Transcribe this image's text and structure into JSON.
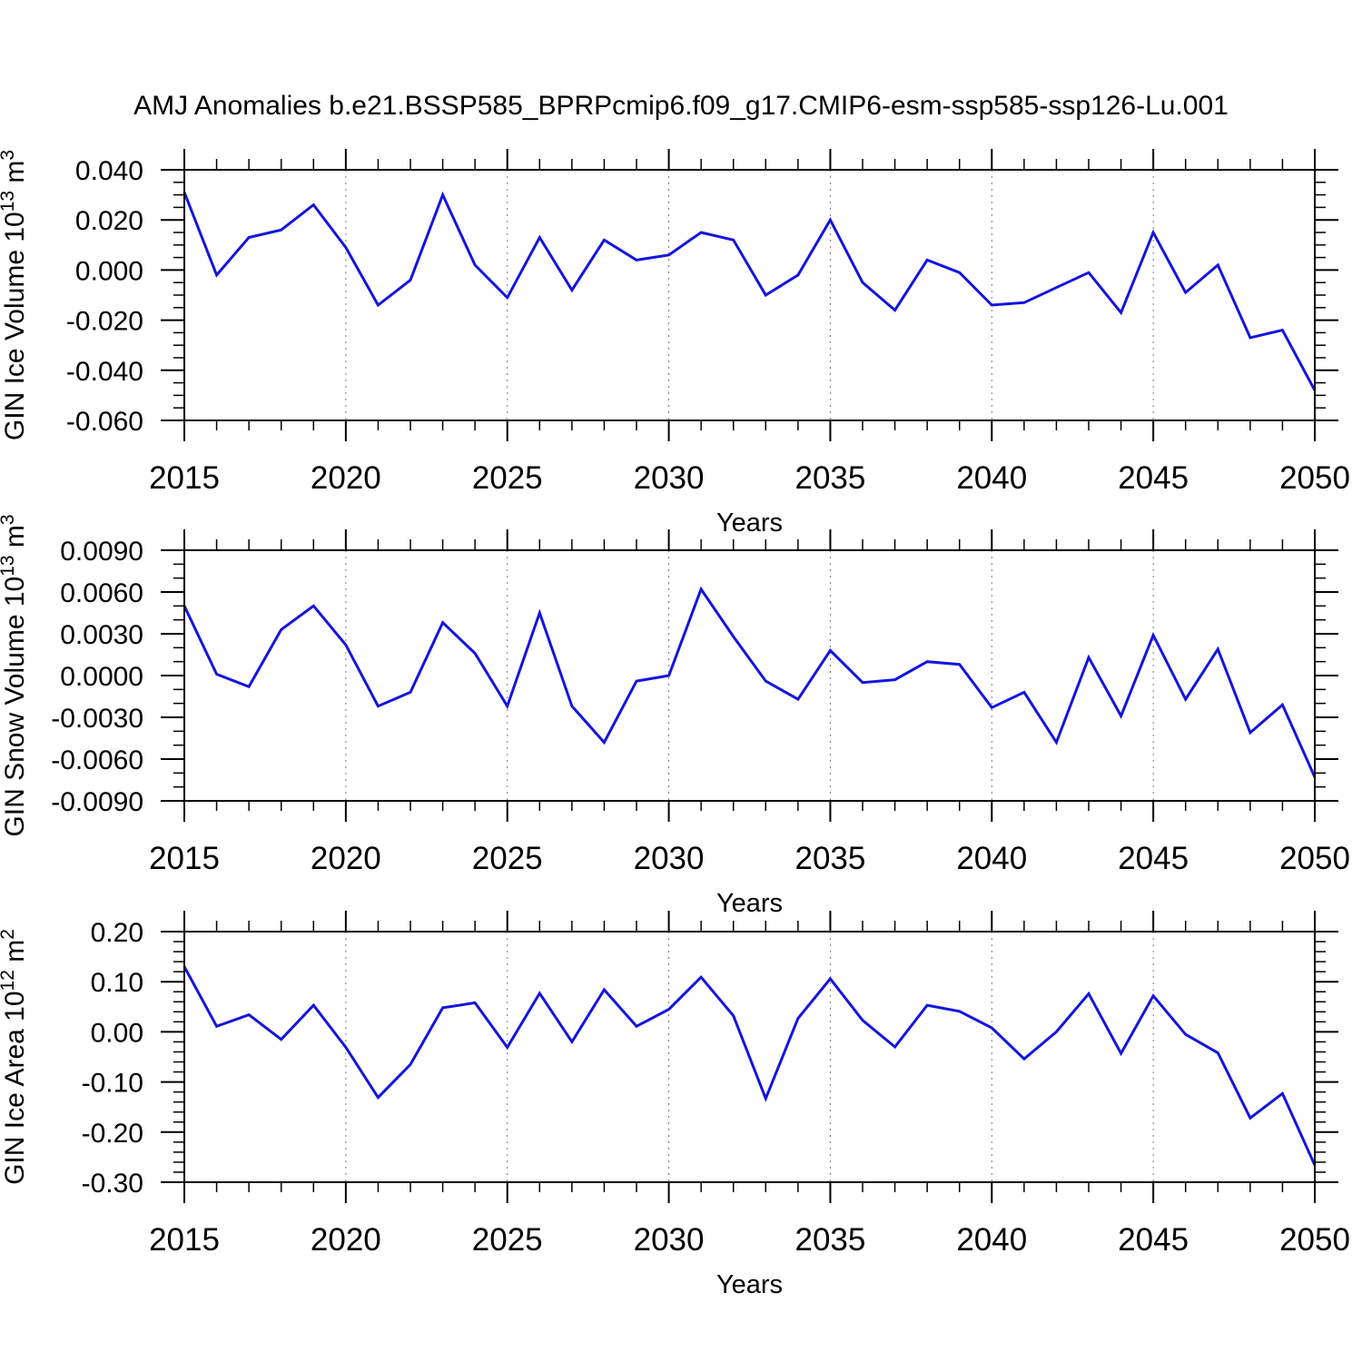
{
  "page": {
    "title": "AMJ Anomalies b.e21.BSSP585_BPRPcmip6.f09_g17.CMIP6-esm-ssp585-ssp126-Lu.001",
    "background": "#ffffff"
  },
  "style": {
    "line_color": "#1414e0",
    "axis_color": "#000000",
    "grid_color": "#7a7a7a",
    "text_color": "#000000"
  },
  "chart_data": [
    {
      "type": "line",
      "name": "GIN Ice Volume",
      "ylabel": "GIN Ice Volume 10¹³ m³",
      "ylabel_parts": [
        {
          "text": "GIN Ice Volume 10",
          "sup": false
        },
        {
          "text": "13",
          "sup": true
        },
        {
          "text": " m",
          "sup": false
        },
        {
          "text": "3",
          "sup": true
        }
      ],
      "xlabel": "Years",
      "x": [
        2015,
        2016,
        2017,
        2018,
        2019,
        2020,
        2021,
        2022,
        2023,
        2024,
        2025,
        2026,
        2027,
        2028,
        2029,
        2030,
        2031,
        2032,
        2033,
        2034,
        2035,
        2036,
        2037,
        2038,
        2039,
        2040,
        2041,
        2042,
        2043,
        2044,
        2045,
        2046,
        2047,
        2048,
        2049,
        2050
      ],
      "values": [
        0.031,
        -0.002,
        0.013,
        0.016,
        0.026,
        0.009,
        -0.014,
        -0.004,
        0.03,
        0.002,
        -0.011,
        0.013,
        -0.008,
        0.012,
        0.004,
        0.006,
        0.015,
        0.012,
        -0.01,
        -0.002,
        0.02,
        -0.005,
        -0.016,
        0.004,
        -0.001,
        -0.014,
        -0.013,
        -0.007,
        -0.001,
        -0.017,
        0.015,
        -0.009,
        0.002,
        -0.027,
        -0.024,
        -0.048
      ],
      "xlim": [
        2015,
        2050
      ],
      "ylim": [
        -0.06,
        0.04
      ],
      "xticks": [
        2015,
        2020,
        2025,
        2030,
        2035,
        2040,
        2045,
        2050
      ],
      "xtick_labels": [
        "2015",
        "2020",
        "2025",
        "2030",
        "2035",
        "2040",
        "2045",
        "2050"
      ],
      "xminor_step": 1,
      "grid_x": [
        2020,
        2025,
        2030,
        2035,
        2040,
        2045
      ],
      "ytick_values": [
        0.04,
        0.02,
        0.0,
        -0.02,
        -0.04,
        -0.06
      ],
      "ytick_labels": [
        "0.040",
        "0.020",
        "0.000",
        "-0.020",
        "-0.040",
        "-0.060"
      ],
      "yminor_step": 0.005,
      "grid_on": false,
      "legend": null
    },
    {
      "type": "line",
      "name": "GIN Snow Volume",
      "ylabel": "GIN Snow Volume 10¹³ m³",
      "ylabel_parts": [
        {
          "text": "GIN Snow Volume 10",
          "sup": false
        },
        {
          "text": "13",
          "sup": true
        },
        {
          "text": " m",
          "sup": false
        },
        {
          "text": "3",
          "sup": true
        }
      ],
      "xlabel": "Years",
      "x": [
        2015,
        2016,
        2017,
        2018,
        2019,
        2020,
        2021,
        2022,
        2023,
        2024,
        2025,
        2026,
        2027,
        2028,
        2029,
        2030,
        2031,
        2032,
        2033,
        2034,
        2035,
        2036,
        2037,
        2038,
        2039,
        2040,
        2041,
        2042,
        2043,
        2044,
        2045,
        2046,
        2047,
        2048,
        2049,
        2050
      ],
      "values": [
        0.005,
        0.0001,
        -0.0008,
        0.0033,
        0.005,
        0.0022,
        -0.0022,
        -0.0012,
        0.0038,
        0.0016,
        -0.0022,
        0.0045,
        -0.0022,
        -0.0048,
        -0.0004,
        0.0,
        0.0062,
        0.0028,
        -0.0004,
        -0.0017,
        0.0018,
        -0.0005,
        -0.0003,
        0.001,
        0.0008,
        -0.0023,
        -0.0012,
        -0.0048,
        0.0013,
        -0.0029,
        0.0029,
        -0.0017,
        0.0019,
        -0.0041,
        -0.0021,
        -0.0073
      ],
      "xlim": [
        2015,
        2050
      ],
      "ylim": [
        -0.009,
        0.009
      ],
      "xticks": [
        2015,
        2020,
        2025,
        2030,
        2035,
        2040,
        2045,
        2050
      ],
      "xtick_labels": [
        "2015",
        "2020",
        "2025",
        "2030",
        "2035",
        "2040",
        "2045",
        "2050"
      ],
      "xminor_step": 1,
      "grid_x": [
        2020,
        2025,
        2030,
        2035,
        2040,
        2045
      ],
      "ytick_values": [
        0.009,
        0.006,
        0.003,
        0.0,
        -0.003,
        -0.006,
        -0.009
      ],
      "ytick_labels": [
        "0.0090",
        "0.0060",
        "0.0030",
        "0.0000",
        "-0.0030",
        "-0.0060",
        "-0.0090"
      ],
      "yminor_step": 0.001,
      "grid_on": false,
      "legend": null
    },
    {
      "type": "line",
      "name": "GIN Ice Area",
      "ylabel": "GIN Ice Area 10¹² m²",
      "ylabel_parts": [
        {
          "text": "GIN Ice Area 10",
          "sup": false
        },
        {
          "text": "12",
          "sup": true
        },
        {
          "text": " m",
          "sup": false
        },
        {
          "text": "2",
          "sup": true
        }
      ],
      "xlabel": "Years",
      "x": [
        2015,
        2016,
        2017,
        2018,
        2019,
        2020,
        2021,
        2022,
        2023,
        2024,
        2025,
        2026,
        2027,
        2028,
        2029,
        2030,
        2031,
        2032,
        2033,
        2034,
        2035,
        2036,
        2037,
        2038,
        2039,
        2040,
        2041,
        2042,
        2043,
        2044,
        2045,
        2046,
        2047,
        2048,
        2049,
        2050
      ],
      "values": [
        0.13,
        0.011,
        0.034,
        -0.015,
        0.053,
        -0.031,
        -0.131,
        -0.065,
        0.048,
        0.058,
        -0.031,
        0.077,
        -0.02,
        0.084,
        0.011,
        0.045,
        0.109,
        0.032,
        -0.133,
        0.027,
        0.106,
        0.023,
        -0.03,
        0.053,
        0.041,
        0.008,
        -0.054,
        0.0,
        0.076,
        -0.043,
        0.072,
        -0.005,
        -0.042,
        -0.172,
        -0.123,
        -0.266
      ],
      "xlim": [
        2015,
        2050
      ],
      "ylim": [
        -0.3,
        0.2
      ],
      "xticks": [
        2015,
        2020,
        2025,
        2030,
        2035,
        2040,
        2045,
        2050
      ],
      "xtick_labels": [
        "2015",
        "2020",
        "2025",
        "2030",
        "2035",
        "2040",
        "2045",
        "2050"
      ],
      "xminor_step": 1,
      "grid_x": [
        2020,
        2025,
        2030,
        2035,
        2040,
        2045
      ],
      "ytick_values": [
        0.2,
        0.1,
        0.0,
        -0.1,
        -0.2,
        -0.3
      ],
      "ytick_labels": [
        "0.20",
        "0.10",
        "0.00",
        "-0.10",
        "-0.20",
        "-0.30"
      ],
      "yminor_step": 0.02,
      "grid_on": false,
      "legend": null
    }
  ]
}
